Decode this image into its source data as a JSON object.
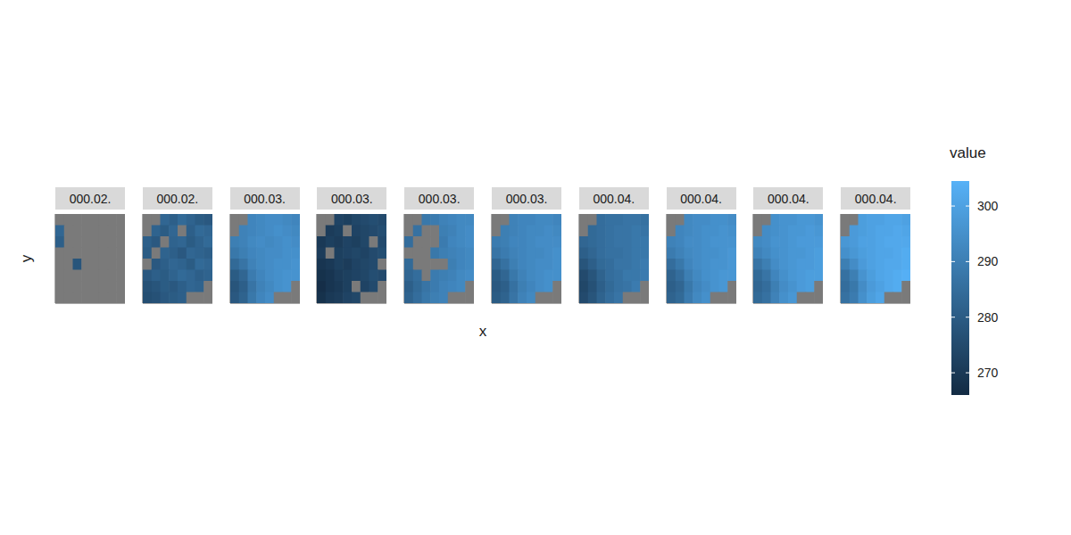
{
  "chart_data": {
    "type": "heatmap",
    "x_label": "x",
    "y_label": "y",
    "tick_labels": false,
    "grid": true,
    "xlim": [
      0,
      8
    ],
    "ylim": [
      0,
      8
    ],
    "xticks": [
      1,
      3,
      5,
      7
    ],
    "yticks": [
      0.5,
      2,
      3.5,
      5,
      6.5
    ],
    "panels": [
      {
        "title": "000.02.",
        "cells": [
          [
            null,
            null,
            null,
            null,
            null,
            null,
            null,
            null
          ],
          [
            283,
            null,
            null,
            null,
            null,
            null,
            null,
            null
          ],
          [
            281,
            null,
            null,
            null,
            null,
            null,
            null,
            null
          ],
          [
            null,
            null,
            null,
            null,
            null,
            null,
            null,
            null
          ],
          [
            null,
            null,
            278,
            null,
            null,
            null,
            null,
            null
          ],
          [
            null,
            null,
            null,
            null,
            null,
            null,
            null,
            null
          ],
          [
            null,
            null,
            null,
            null,
            null,
            null,
            null,
            null
          ],
          [
            null,
            null,
            null,
            null,
            null,
            null,
            null,
            null
          ]
        ]
      },
      {
        "title": "000.02.",
        "cells": [
          [
            null,
            null,
            283,
            281,
            284,
            282,
            280,
            279
          ],
          [
            null,
            282,
            280,
            283,
            null,
            281,
            284,
            283
          ],
          [
            281,
            279,
            null,
            282,
            283,
            280,
            282,
            284
          ],
          [
            280,
            null,
            282,
            281,
            279,
            283,
            282,
            281
          ],
          [
            null,
            279,
            281,
            283,
            282,
            280,
            284,
            283
          ],
          [
            279,
            281,
            280,
            282,
            284,
            283,
            281,
            282
          ],
          [
            277,
            278,
            280,
            279,
            281,
            283,
            282,
            null
          ],
          [
            276,
            277,
            279,
            280,
            281,
            null,
            null,
            null
          ]
        ]
      },
      {
        "title": "000.03.",
        "cells": [
          [
            null,
            null,
            292,
            293,
            294,
            294,
            293,
            292
          ],
          [
            null,
            291,
            292,
            293,
            294,
            295,
            294,
            293
          ],
          [
            290,
            291,
            293,
            294,
            293,
            294,
            295,
            294
          ],
          [
            288,
            290,
            292,
            293,
            294,
            294,
            295,
            295
          ],
          [
            284,
            287,
            291,
            293,
            294,
            295,
            295,
            296
          ],
          [
            280,
            283,
            289,
            292,
            294,
            295,
            296,
            296
          ],
          [
            278,
            281,
            287,
            291,
            293,
            295,
            296,
            null
          ],
          [
            279,
            282,
            288,
            292,
            294,
            null,
            null,
            null
          ]
        ]
      },
      {
        "title": "000.03.",
        "cells": [
          [
            null,
            null,
            273,
            272,
            274,
            275,
            276,
            275
          ],
          [
            null,
            271,
            272,
            null,
            273,
            274,
            275,
            276
          ],
          [
            270,
            272,
            271,
            273,
            272,
            274,
            null,
            275
          ],
          [
            271,
            null,
            272,
            273,
            274,
            273,
            275,
            276
          ],
          [
            269,
            270,
            272,
            271,
            273,
            274,
            275,
            null
          ],
          [
            268,
            269,
            271,
            272,
            273,
            274,
            276,
            275
          ],
          [
            267,
            269,
            270,
            272,
            null,
            273,
            275,
            null
          ],
          [
            268,
            270,
            271,
            273,
            274,
            null,
            null,
            null
          ]
        ]
      },
      {
        "title": "000.03.",
        "cells": [
          [
            null,
            null,
            288,
            289,
            291,
            292,
            293,
            293
          ],
          [
            null,
            286,
            null,
            null,
            290,
            291,
            293,
            294
          ],
          [
            285,
            null,
            null,
            null,
            289,
            292,
            293,
            294
          ],
          [
            null,
            null,
            null,
            288,
            290,
            291,
            292,
            293
          ],
          [
            284,
            null,
            null,
            null,
            null,
            290,
            292,
            293
          ],
          [
            283,
            285,
            null,
            289,
            290,
            291,
            293,
            294
          ],
          [
            281,
            284,
            287,
            289,
            291,
            292,
            293,
            null
          ],
          [
            282,
            285,
            288,
            290,
            291,
            null,
            null,
            null
          ]
        ]
      },
      {
        "title": "000.03.",
        "cells": [
          [
            null,
            null,
            291,
            292,
            292,
            293,
            293,
            292
          ],
          [
            null,
            290,
            291,
            292,
            293,
            293,
            294,
            293
          ],
          [
            289,
            290,
            292,
            292,
            293,
            294,
            294,
            294
          ],
          [
            287,
            289,
            291,
            292,
            293,
            293,
            294,
            295
          ],
          [
            283,
            286,
            290,
            292,
            293,
            294,
            294,
            295
          ],
          [
            280,
            283,
            288,
            291,
            293,
            294,
            295,
            295
          ],
          [
            279,
            281,
            286,
            290,
            292,
            294,
            295,
            null
          ],
          [
            280,
            282,
            287,
            291,
            293,
            null,
            null,
            null
          ]
        ]
      },
      {
        "title": "000.04.",
        "cells": [
          [
            null,
            null,
            285,
            286,
            286,
            287,
            287,
            286
          ],
          [
            null,
            284,
            285,
            286,
            287,
            287,
            288,
            287
          ],
          [
            283,
            284,
            285,
            286,
            287,
            287,
            288,
            288
          ],
          [
            281,
            283,
            285,
            286,
            286,
            287,
            288,
            288
          ],
          [
            278,
            281,
            284,
            285,
            287,
            287,
            288,
            289
          ],
          [
            275,
            278,
            282,
            285,
            286,
            288,
            288,
            289
          ],
          [
            274,
            277,
            281,
            284,
            286,
            287,
            289,
            null
          ],
          [
            275,
            278,
            282,
            285,
            287,
            null,
            null,
            null
          ]
        ]
      },
      {
        "title": "000.04.",
        "cells": [
          [
            null,
            null,
            293,
            294,
            294,
            295,
            295,
            294
          ],
          [
            null,
            292,
            293,
            294,
            295,
            295,
            296,
            295
          ],
          [
            291,
            292,
            294,
            294,
            295,
            296,
            296,
            296
          ],
          [
            289,
            291,
            293,
            294,
            295,
            295,
            296,
            297
          ],
          [
            285,
            288,
            292,
            294,
            295,
            296,
            296,
            297
          ],
          [
            282,
            285,
            290,
            293,
            295,
            296,
            297,
            297
          ],
          [
            281,
            283,
            288,
            292,
            294,
            296,
            297,
            null
          ],
          [
            282,
            284,
            289,
            293,
            295,
            null,
            null,
            null
          ]
        ]
      },
      {
        "title": "000.04.",
        "cells": [
          [
            null,
            null,
            295,
            296,
            296,
            297,
            297,
            296
          ],
          [
            null,
            294,
            295,
            296,
            297,
            297,
            298,
            297
          ],
          [
            293,
            294,
            296,
            296,
            297,
            298,
            298,
            298
          ],
          [
            291,
            293,
            295,
            296,
            297,
            297,
            298,
            299
          ],
          [
            287,
            290,
            294,
            296,
            297,
            298,
            298,
            299
          ],
          [
            284,
            287,
            292,
            295,
            297,
            298,
            299,
            299
          ],
          [
            283,
            285,
            290,
            294,
            296,
            298,
            299,
            null
          ],
          [
            284,
            286,
            291,
            295,
            297,
            null,
            null,
            null
          ]
        ]
      },
      {
        "title": "000.04.",
        "cells": [
          [
            null,
            null,
            299,
            300,
            300,
            301,
            301,
            300
          ],
          [
            null,
            298,
            299,
            300,
            301,
            301,
            302,
            301
          ],
          [
            297,
            298,
            300,
            300,
            301,
            302,
            302,
            302
          ],
          [
            295,
            297,
            299,
            300,
            301,
            301,
            302,
            303
          ],
          [
            290,
            294,
            298,
            300,
            301,
            302,
            302,
            303
          ],
          [
            286,
            290,
            296,
            299,
            301,
            302,
            303,
            304
          ],
          [
            285,
            288,
            294,
            298,
            300,
            302,
            303,
            null
          ],
          [
            286,
            289,
            295,
            299,
            301,
            null,
            null,
            null
          ]
        ]
      }
    ],
    "colorbar": {
      "title": "value",
      "range": [
        266,
        304.5
      ],
      "ticks": [
        270,
        280,
        290,
        300
      ],
      "colors": [
        "#132B43",
        "#56B1F7"
      ]
    }
  }
}
